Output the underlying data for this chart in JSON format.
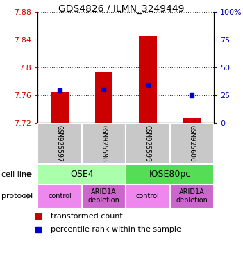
{
  "title": "GDS4826 / ILMN_3249449",
  "samples": [
    "GSM925597",
    "GSM925598",
    "GSM925599",
    "GSM925600"
  ],
  "red_bar_bottoms": [
    7.72,
    7.72,
    7.72,
    7.72
  ],
  "red_bar_tops": [
    7.765,
    7.793,
    7.845,
    7.727
  ],
  "blue_marker_values": [
    7.767,
    7.768,
    7.775,
    7.76
  ],
  "ylim": [
    7.72,
    7.88
  ],
  "yticks_left": [
    7.72,
    7.76,
    7.8,
    7.84,
    7.88
  ],
  "yticks_right_pct": [
    0,
    25,
    50,
    75,
    100
  ],
  "ytick_labels_left": [
    "7.72",
    "7.76",
    "7.8",
    "7.84",
    "7.88"
  ],
  "ytick_labels_right": [
    "0",
    "25",
    "50",
    "75",
    "100%"
  ],
  "cell_line_labels": [
    "OSE4",
    "IOSE80pc"
  ],
  "cell_line_spans": [
    [
      0,
      2
    ],
    [
      2,
      4
    ]
  ],
  "cell_line_colors": [
    "#aaffaa",
    "#55dd55"
  ],
  "protocol_labels": [
    "control",
    "ARID1A\ndepletion",
    "control",
    "ARID1A\ndepletion"
  ],
  "protocol_colors": [
    "#ee88ee",
    "#cc66cc",
    "#ee88ee",
    "#cc66cc"
  ],
  "bar_color": "#cc0000",
  "blue_color": "#0000cc",
  "left_axis_color": "#cc0000",
  "right_axis_color": "#0000bb",
  "sample_box_color": "#c8c8c8",
  "plot_bg": "white",
  "fig_bg": "white",
  "bar_width": 0.4,
  "title_fontsize": 10,
  "tick_fontsize": 8,
  "sample_fontsize": 7,
  "cell_fontsize": 9,
  "protocol_fontsize": 7,
  "legend_fontsize": 8
}
